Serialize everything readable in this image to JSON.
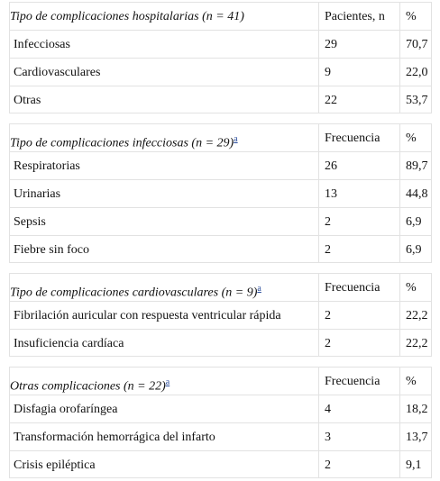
{
  "sections": [
    {
      "title": "Tipo de complicaciones hospitalarias (n = 41)",
      "col2": "Pacientes, n",
      "col3": "%",
      "rows": [
        [
          "Infecciosas",
          "29",
          "70,7"
        ],
        [
          "Cardiovasculares",
          "9",
          "22,0"
        ],
        [
          "Otras",
          "22",
          "53,7"
        ]
      ]
    },
    {
      "title": "Tipo de complicaciones infecciosas (n = 29)",
      "note": "a",
      "col2": "Frecuencia",
      "col3": "%",
      "rows": [
        [
          "Respiratorias",
          "26",
          "89,7"
        ],
        [
          "Urinarias",
          "13",
          "44,8"
        ],
        [
          "Sepsis",
          "2",
          "6,9"
        ],
        [
          "Fiebre sin foco",
          "2",
          "6,9"
        ]
      ]
    },
    {
      "title": "Tipo de complicaciones cardiovasculares (n = 9)",
      "note": "a",
      "col2": "Frecuencia",
      "col3": "%",
      "rows": [
        [
          "Fibrilación auricular con respuesta ventricular rápida",
          "2",
          "22,2"
        ],
        [
          "Insuficiencia cardíaca",
          "2",
          "22,2"
        ]
      ]
    },
    {
      "title": "Otras complicaciones (n = 22)",
      "note": "a",
      "col2": "Frecuencia",
      "col3": "%",
      "rows": [
        [
          "Disfagia orofaríngea",
          "4",
          "18,2"
        ],
        [
          "Transformación hemorrágica del infarto",
          "3",
          "13,7"
        ],
        [
          "Crisis epiléptica",
          "2",
          "9,1"
        ]
      ]
    }
  ]
}
